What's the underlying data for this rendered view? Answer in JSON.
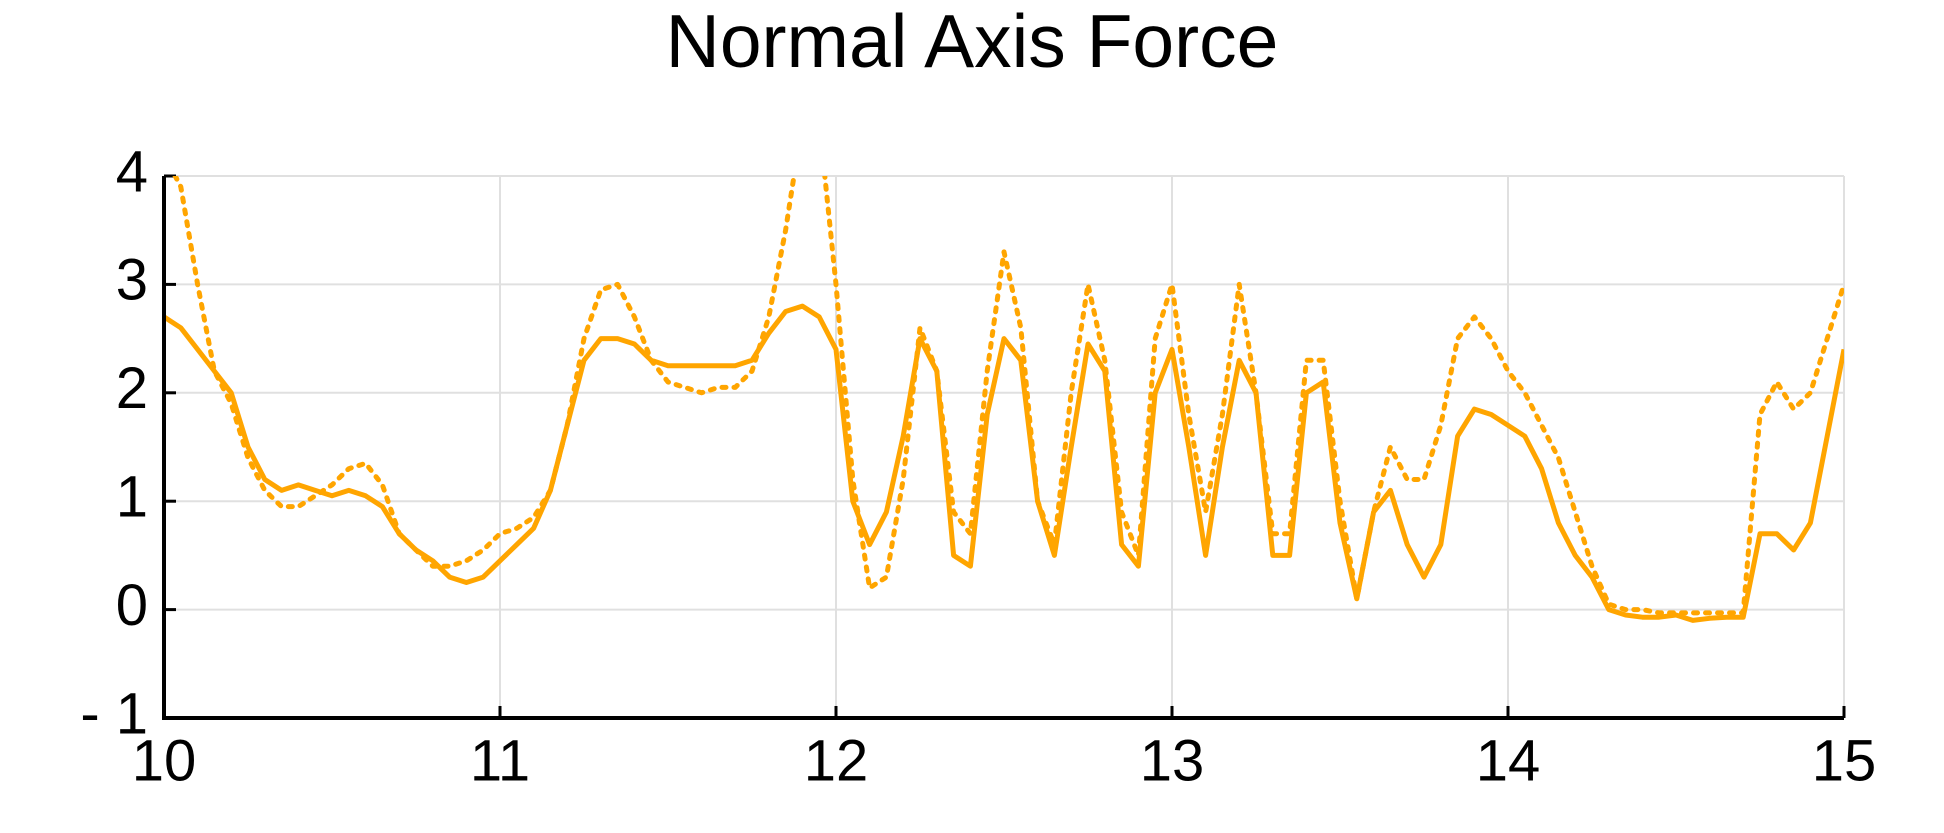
{
  "chart_data": {
    "type": "line",
    "title": "Normal Axis Force",
    "x": [
      10,
      10.05,
      10.1,
      10.15,
      10.2,
      10.25,
      10.3,
      10.35,
      10.4,
      10.45,
      10.5,
      10.55,
      10.6,
      10.65,
      10.7,
      10.75,
      10.8,
      10.85,
      10.9,
      10.95,
      11,
      11.05,
      11.1,
      11.15,
      11.2,
      11.25,
      11.3,
      11.35,
      11.4,
      11.45,
      11.5,
      11.55,
      11.6,
      11.65,
      11.7,
      11.75,
      11.8,
      11.85,
      11.9,
      11.95,
      12,
      12.05,
      12.1,
      12.15,
      12.2,
      12.25,
      12.3,
      12.35,
      12.4,
      12.45,
      12.5,
      12.55,
      12.6,
      12.65,
      12.7,
      12.75,
      12.8,
      12.85,
      12.9,
      12.95,
      13,
      13.05,
      13.1,
      13.15,
      13.2,
      13.25,
      13.3,
      13.35,
      13.4,
      13.45,
      13.5,
      13.55,
      13.6,
      13.65,
      13.7,
      13.75,
      13.8,
      13.85,
      13.9,
      13.95,
      14,
      14.05,
      14.1,
      14.15,
      14.2,
      14.25,
      14.3,
      14.35,
      14.4,
      14.45,
      14.5,
      14.55,
      14.6,
      14.65,
      14.7,
      14.75,
      14.8,
      14.85,
      14.9,
      14.95,
      15
    ],
    "series": [
      {
        "color": "#ffa500",
        "style": "solid",
        "values": [
          2.7,
          2.6,
          2.4,
          2.2,
          2.0,
          1.5,
          1.2,
          1.1,
          1.15,
          1.1,
          1.05,
          1.1,
          1.05,
          0.95,
          0.7,
          0.55,
          0.45,
          0.3,
          0.25,
          0.3,
          0.45,
          0.6,
          0.75,
          1.1,
          1.7,
          2.3,
          2.5,
          2.5,
          2.45,
          2.3,
          2.25,
          2.25,
          2.25,
          2.25,
          2.25,
          2.3,
          2.55,
          2.75,
          2.8,
          2.7,
          2.4,
          1.0,
          0.6,
          0.9,
          1.6,
          2.5,
          2.2,
          0.5,
          0.4,
          1.8,
          2.5,
          2.3,
          1.0,
          0.5,
          1.5,
          2.45,
          2.2,
          0.6,
          0.4,
          2.0,
          2.4,
          1.5,
          0.5,
          1.5,
          2.3,
          2.0,
          0.5,
          0.5,
          2.0,
          2.1,
          0.8,
          0.1,
          0.9,
          1.1,
          0.6,
          0.3,
          0.6,
          1.6,
          1.85,
          1.8,
          1.7,
          1.6,
          1.3,
          0.8,
          0.5,
          0.3,
          0.0,
          -0.05,
          -0.07,
          -0.07,
          -0.05,
          -0.1,
          -0.08,
          -0.07,
          -0.07,
          0.7,
          0.7,
          0.55,
          0.8,
          1.6,
          2.4
        ]
      },
      {
        "color": "#ffa500",
        "style": "dotted",
        "values": [
          4.2,
          3.9,
          3.0,
          2.2,
          1.9,
          1.4,
          1.1,
          0.95,
          0.95,
          1.05,
          1.15,
          1.3,
          1.35,
          1.15,
          0.7,
          0.55,
          0.4,
          0.4,
          0.45,
          0.55,
          0.7,
          0.75,
          0.85,
          1.1,
          1.7,
          2.5,
          2.95,
          3.0,
          2.7,
          2.3,
          2.1,
          2.05,
          2.0,
          2.05,
          2.05,
          2.2,
          2.7,
          3.5,
          4.5,
          4.5,
          3.0,
          1.2,
          0.2,
          0.3,
          1.2,
          2.6,
          2.2,
          0.9,
          0.7,
          2.2,
          3.3,
          2.6,
          1.0,
          0.6,
          2.0,
          3.0,
          2.3,
          0.9,
          0.5,
          2.5,
          3.0,
          1.8,
          0.9,
          1.8,
          3.0,
          2.0,
          0.7,
          0.7,
          2.3,
          2.3,
          1.0,
          0.1,
          0.9,
          1.5,
          1.2,
          1.2,
          1.7,
          2.5,
          2.7,
          2.5,
          2.2,
          2.0,
          1.7,
          1.4,
          0.9,
          0.4,
          0.05,
          0.0,
          0.0,
          -0.03,
          -0.03,
          -0.03,
          -0.03,
          -0.03,
          -0.03,
          1.8,
          2.1,
          1.85,
          2.0,
          2.5,
          3.0
        ]
      }
    ],
    "xlim": [
      10,
      15
    ],
    "xticks": [
      10,
      11,
      12,
      13,
      14,
      15
    ],
    "ylim": [
      -1,
      4
    ],
    "yticks": [
      {
        "value": -1,
        "label": "- 1"
      },
      0,
      1,
      2,
      3,
      4
    ],
    "grid": true
  }
}
